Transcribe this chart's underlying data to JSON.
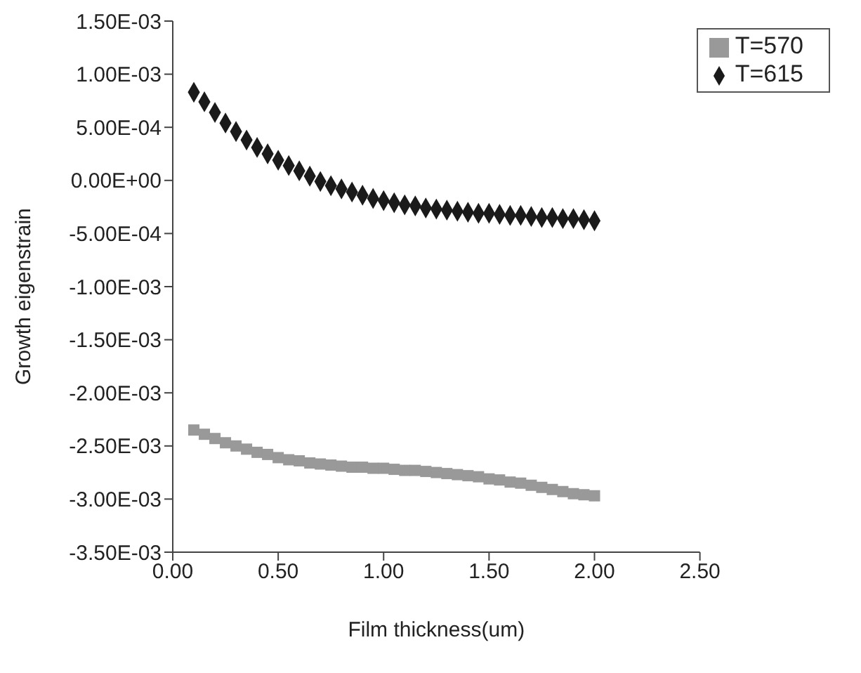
{
  "chart_data": {
    "type": "scatter",
    "xlabel": "Film thickness(um)",
    "ylabel": "Growth eigenstrain",
    "xlim": [
      0,
      2.5
    ],
    "xticks": [
      {
        "value": 0,
        "label": "0.00"
      },
      {
        "value": 0.5,
        "label": "0.50"
      },
      {
        "value": 1,
        "label": "1.00"
      },
      {
        "value": 1.5,
        "label": "1.50"
      },
      {
        "value": 2,
        "label": "2.00"
      },
      {
        "value": 2.5,
        "label": "2.50"
      }
    ],
    "ylim": [
      -0.0035,
      0.0015
    ],
    "yticks": [
      {
        "value": 0.0015,
        "label": "1.50E-03"
      },
      {
        "value": 0.001,
        "label": "1.00E-03"
      },
      {
        "value": 0.0005,
        "label": "5.00E-04"
      },
      {
        "value": 0,
        "label": "0.00E+00"
      },
      {
        "value": -0.0005,
        "label": "-5.00E-04"
      },
      {
        "value": -0.001,
        "label": "-1.00E-03"
      },
      {
        "value": -0.0015,
        "label": "-1.50E-03"
      },
      {
        "value": -0.002,
        "label": "-2.00E-03"
      },
      {
        "value": -0.0025,
        "label": "-2.50E-03"
      },
      {
        "value": -0.003,
        "label": "-3.00E-03"
      },
      {
        "value": -0.0035,
        "label": "-3.50E-03"
      }
    ],
    "x": [
      0.1,
      0.15,
      0.2,
      0.25,
      0.3,
      0.35,
      0.4,
      0.45,
      0.5,
      0.55,
      0.6,
      0.65,
      0.7,
      0.75,
      0.8,
      0.85,
      0.9,
      0.95,
      1.0,
      1.05,
      1.1,
      1.15,
      1.2,
      1.25,
      1.3,
      1.35,
      1.4,
      1.45,
      1.5,
      1.55,
      1.6,
      1.65,
      1.7,
      1.75,
      1.8,
      1.85,
      1.9,
      1.95,
      2.0
    ],
    "grid": false,
    "legend": "top right",
    "series": [
      {
        "name": "T=615",
        "color": "#1a1a1a",
        "marker": "diamond",
        "values": [
          0.00083,
          0.00074,
          0.00064,
          0.00054,
          0.00046,
          0.00038,
          0.00031,
          0.00025,
          0.00019,
          0.00014,
          9e-05,
          4e-05,
          -1e-05,
          -5e-05,
          -8e-05,
          -0.00011,
          -0.00014,
          -0.00017,
          -0.00019,
          -0.00021,
          -0.00023,
          -0.00024,
          -0.00026,
          -0.00027,
          -0.00028,
          -0.00029,
          -0.0003,
          -0.00031,
          -0.00031,
          -0.00032,
          -0.00033,
          -0.00033,
          -0.00034,
          -0.00035,
          -0.00035,
          -0.00036,
          -0.00036,
          -0.00037,
          -0.00038
        ]
      },
      {
        "name": "T=570",
        "color": "#999999",
        "marker": "square",
        "values": [
          -0.00235,
          -0.00239,
          -0.00243,
          -0.00247,
          -0.0025,
          -0.00253,
          -0.00256,
          -0.00258,
          -0.00261,
          -0.00263,
          -0.00264,
          -0.00266,
          -0.00267,
          -0.00268,
          -0.00269,
          -0.0027,
          -0.0027,
          -0.00271,
          -0.00271,
          -0.00272,
          -0.00273,
          -0.00273,
          -0.00274,
          -0.00275,
          -0.00276,
          -0.00277,
          -0.00278,
          -0.00279,
          -0.00281,
          -0.00282,
          -0.00284,
          -0.00285,
          -0.00287,
          -0.00289,
          -0.00291,
          -0.00293,
          -0.00295,
          -0.00296,
          -0.00297
        ]
      }
    ]
  }
}
